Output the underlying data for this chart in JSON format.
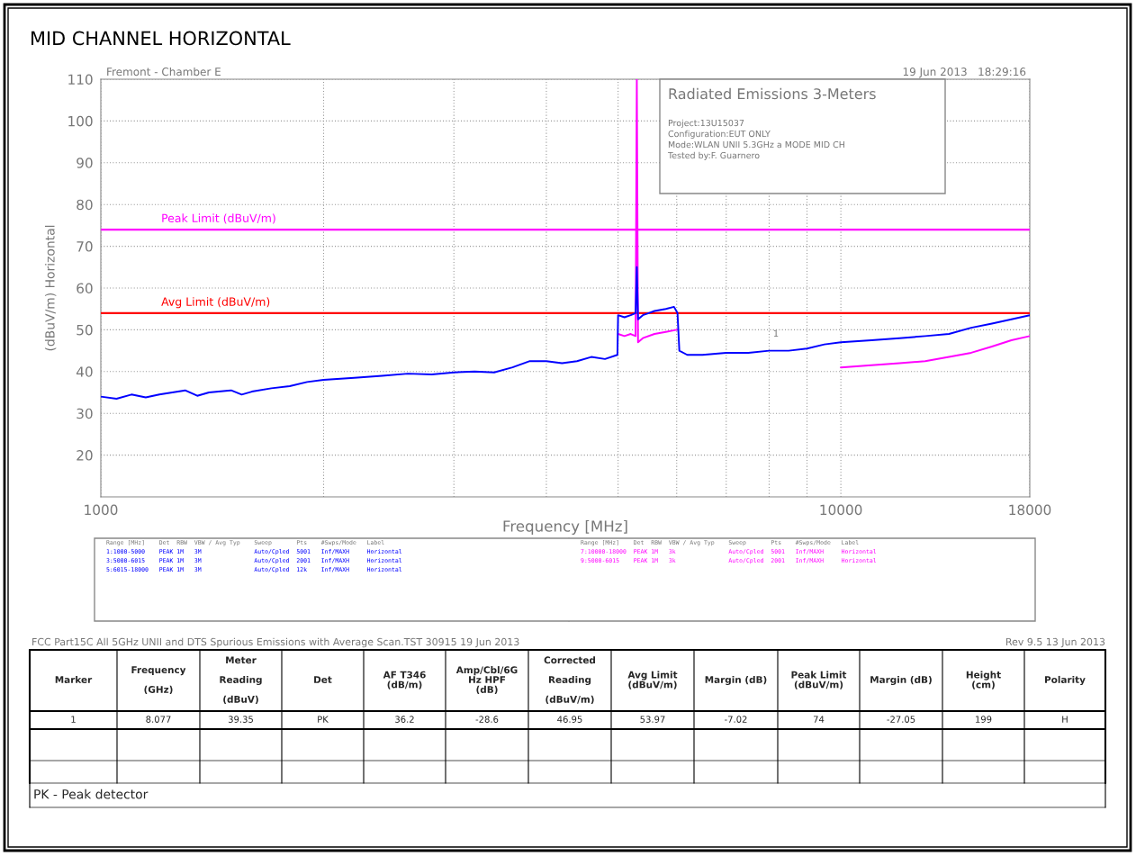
{
  "chart_data": [
    {
      "type": "line",
      "title": "MID CHANNEL HORIZONTAL",
      "xlabel": "Frequency [MHz]",
      "ylabel": "(dBuV/m) Horizontal",
      "log": "x",
      "grid": true,
      "xlim": [
        1000,
        18000
      ],
      "xticks": [
        1000,
        {
          "value": 2000,
          "label": null
        },
        {
          "value": 3000,
          "label": null
        },
        {
          "value": 4000,
          "label": null
        },
        {
          "value": 5000,
          "label": null
        },
        {
          "value": 6000,
          "label": null
        },
        {
          "value": 7000,
          "label": null
        },
        {
          "value": 8000,
          "label": null
        },
        {
          "value": 9000,
          "label": null
        },
        10000,
        18000
      ],
      "ylim": [
        10,
        110
      ],
      "yticks": [
        20,
        30,
        40,
        50,
        60,
        70,
        80,
        90,
        100,
        110
      ],
      "series": [
        {
          "color": "#0000ff",
          "x": [
            1000,
            1050,
            1100,
            1150,
            1200,
            1300,
            1350,
            1400,
            1500,
            1550,
            1600,
            1700,
            1800,
            1900,
            2000,
            2200,
            2400,
            2600,
            2800,
            3000,
            3200,
            3400,
            3600,
            3800,
            4000,
            4200,
            4400,
            4600,
            4800,
            4990,
            5000,
            5100,
            5200,
            5280,
            5300,
            5320,
            5400,
            5500,
            5600,
            5800,
            5950,
            6015,
            6050,
            6200,
            6500,
            7000,
            7500,
            8000,
            8500,
            9000,
            9500,
            10000,
            11000,
            12000,
            13000,
            14000,
            15000,
            16000,
            17000,
            18000
          ],
          "values": [
            34,
            33.5,
            34.5,
            33.8,
            34.5,
            35.5,
            34.2,
            35,
            35.5,
            34.5,
            35.2,
            36,
            36.5,
            37.5,
            38,
            38.5,
            39,
            39.5,
            39.3,
            39.8,
            40,
            39.8,
            41,
            42.5,
            42.5,
            42,
            42.5,
            43.5,
            43,
            44,
            53.5,
            53,
            53.5,
            54,
            65,
            52.5,
            53.5,
            54,
            54.5,
            55,
            55.5,
            54,
            45,
            44,
            44,
            44.5,
            44.5,
            45,
            45,
            45.5,
            46.5,
            47,
            47.5,
            48,
            48.5,
            49,
            50.5,
            51.5,
            52.5,
            53.5
          ]
        },
        {
          "color": "#ff00ff",
          "x": [
            5000,
            5100,
            5200,
            5280,
            5300,
            5320,
            5400,
            5600,
            5800,
            6000,
            6015,
            8000,
            10000,
            11000,
            12000,
            13000,
            14000,
            15000,
            16000,
            17000,
            18000
          ],
          "values": [
            49,
            48.5,
            49,
            48.5,
            110,
            47,
            48,
            49,
            49.5,
            50,
            50,
            null,
            41,
            41.5,
            42,
            42.5,
            43.5,
            44.5,
            46,
            47.5,
            48.5
          ]
        }
      ],
      "ref_lines": [
        {
          "axis": "y",
          "value": 74,
          "label": "Peak Limit (dBuV/m)",
          "color": "#ff00ff"
        },
        {
          "axis": "y",
          "value": 54,
          "label": "Avg Limit (dBuV/m)",
          "color": "#ff0000"
        }
      ],
      "annotations": [
        "Fremont - Chamber E",
        "19 Jun 2013   18:29:16",
        "Radiated Emissions 3-Meters",
        "Project:13U15037",
        "Configuration:EUT ONLY",
        "Mode:WLAN UNII 5.3GHz a MODE MID CH",
        "Tested by:F. Guarnero",
        "1",
        "Range [MHz]    Det  RBW  VBW / Avg Typ    Sweep       Pts    #Swps/Mode   Label",
        "1:1000-5000    PEAK 1M   3M               Auto/Cpled  5001   Inf/MAXH     Horizontal",
        "3:5000-6015    PEAK 1M   3M               Auto/Cpled  2001   Inf/MAXH     Horizontal",
        "5:6015-18000   PEAK 1M   3M               Auto/Cpled  12k    Inf/MAXH     Horizontal",
        "Range [MHz]    Det  RBW  VBW / Avg Typ    Sweep       Pts    #Swps/Mode   Label",
        "7:10000-18000  PEAK 1M   3k               Auto/Cpled  5001   Inf/MAXH     Horizontal",
        "9:5000-6015    PEAK 1M   3k               Auto/Cpled  2001   Inf/MAXH     Horizontal",
        "FCC Part15C All 5GHz UNII and DTS Spurious Emissions with Average Scan.TST 30915 19 Jun 2013",
        "Rev 9.5 13 Jun 2013"
      ]
    },
    {
      "type": "other",
      "annotations": [
        "Marker",
        "Frequency\n\n(GHz)",
        "Meter\n\nReading\n\n(dBuV)",
        "Det",
        "AF T346\n(dB/m)",
        "Amp/Cbl/6G\nHz HPF\n(dB)",
        "Corrected\n\nReading\n\n(dBuV/m)",
        "Avg Limit\n(dBuV/m)",
        "Margin (dB)",
        "Peak Limit\n(dBuV/m)",
        "Margin (dB)",
        "Height\n(cm)",
        "Polarity",
        "1",
        "8.077",
        "39.35",
        "PK",
        "36.2",
        "-28.6",
        "46.95",
        "53.97",
        "-7.02",
        "74",
        "-27.05",
        "199",
        "H",
        "PK - Peak detector"
      ]
    }
  ]
}
